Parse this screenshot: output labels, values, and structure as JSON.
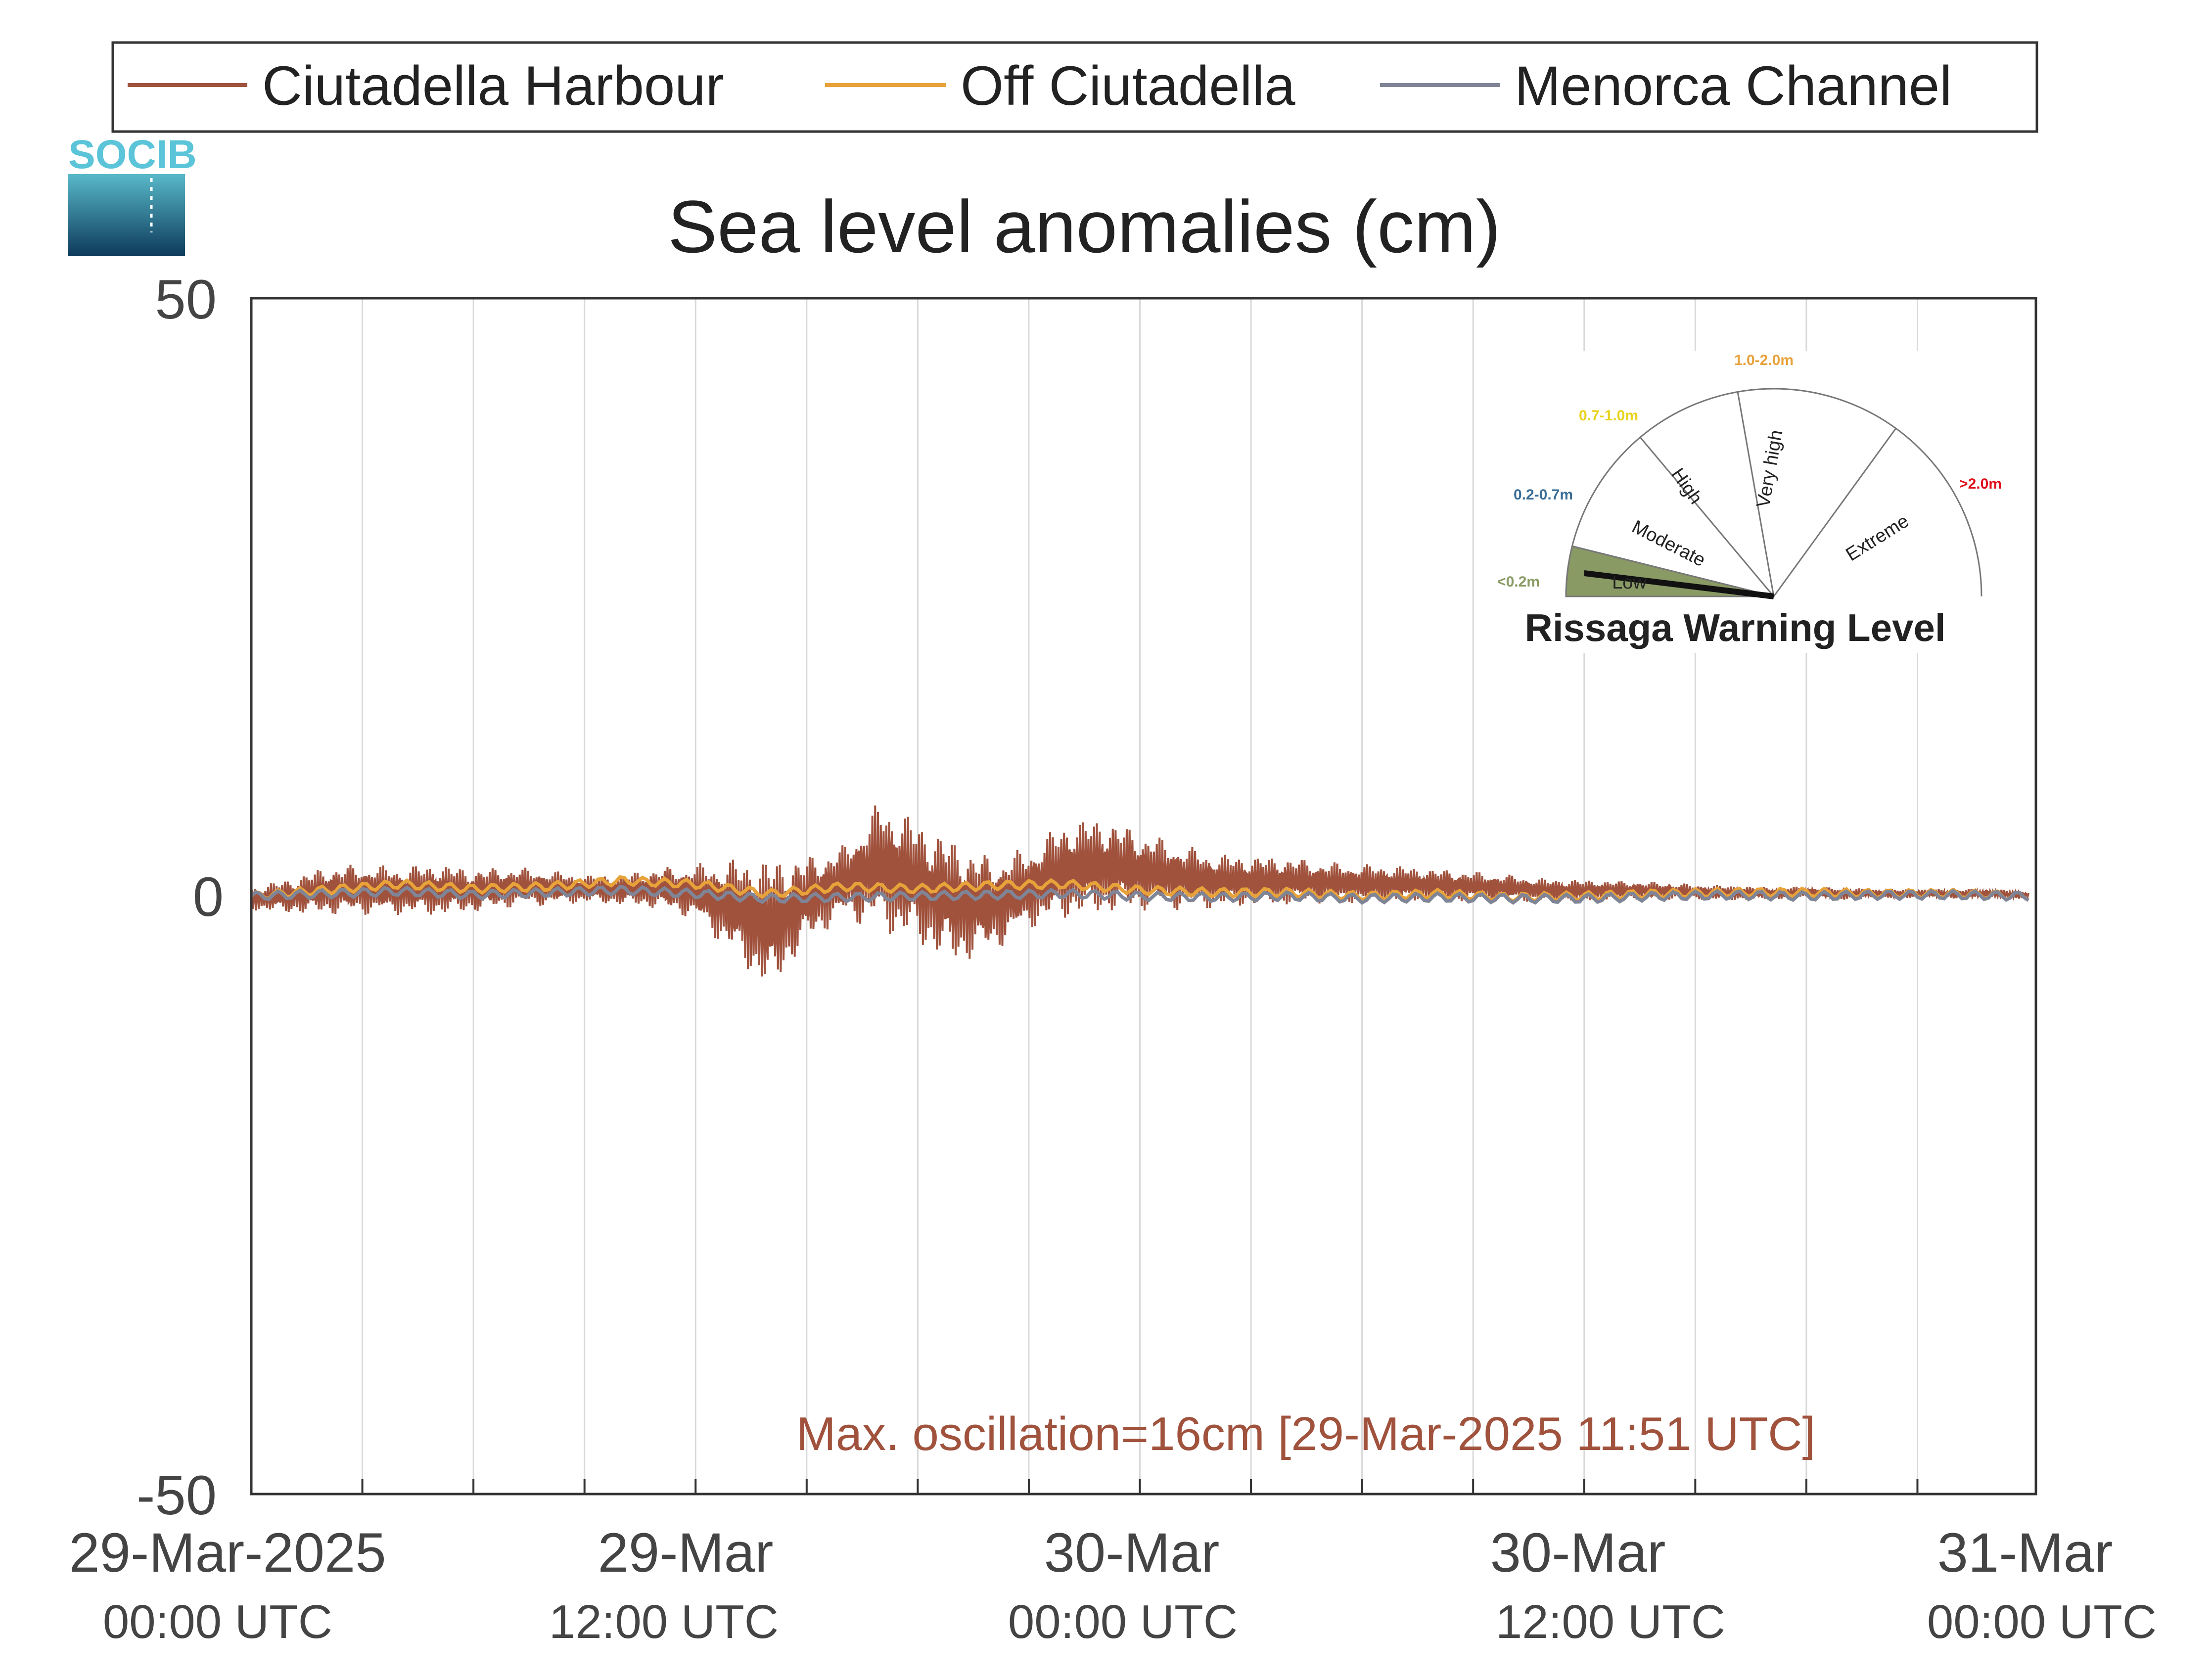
{
  "colors": {
    "ciutadella_harbour": "#A0523D",
    "off_ciutadella": "#E8A23A",
    "menorca_channel": "#7F8596",
    "low": "#8A9A64",
    "moderate_range": "#3C6E96",
    "high_range": "#E8D21E",
    "very_high_range": "#E8A23A",
    "extreme_range": "#E0101E",
    "logo_text": "#5BC4D8"
  },
  "logo": {
    "text": "SOCIB"
  },
  "chart_data": {
    "type": "line",
    "title": "Sea level anomalies (cm)",
    "ylim": [
      -50,
      50
    ],
    "yticks": [
      "50",
      "0",
      "-50"
    ],
    "xlim": [
      "2025-03-29 00:00",
      "2025-03-31 01:00"
    ],
    "x_unit": "hours since 29-Mar-2025 00:00 UTC",
    "xticks": [
      {
        "main": "29-Mar-2025",
        "sub": "00:00 UTC"
      },
      {
        "main": "29-Mar",
        "sub": "12:00 UTC"
      },
      {
        "main": "30-Mar",
        "sub": "00:00 UTC"
      },
      {
        "main": "30-Mar",
        "sub": "12:00 UTC"
      },
      {
        "main": "31-Mar",
        "sub": "00:00 UTC"
      }
    ],
    "grid": "vertical lines every 3 hours",
    "legend_position": "top",
    "annotation": "Max. oscillation=16cm [29-Mar-2025 11:51 UTC]",
    "series": [
      {
        "name": "Ciutadella Harbour",
        "description_of_values": "sea level anomaly envelope (cm), max/min per hour",
        "x": [
          0,
          1,
          2,
          3,
          4,
          5,
          6,
          7,
          8,
          9,
          10,
          11,
          12,
          13,
          14,
          15,
          16,
          17,
          18,
          19,
          20,
          21,
          22,
          23,
          24,
          25,
          26,
          27,
          28,
          29,
          30,
          31,
          32,
          33,
          34,
          35,
          36,
          37,
          38,
          39,
          40,
          41,
          42,
          43,
          44,
          45,
          46,
          47,
          48
        ],
        "max": [
          0.8,
          1.5,
          2.5,
          2.7,
          2.5,
          2.8,
          2.3,
          2.5,
          2.2,
          1.8,
          1.9,
          2.4,
          2.7,
          3.2,
          3.3,
          3.4,
          4.3,
          8.2,
          6.5,
          4.8,
          3.3,
          4.1,
          6.4,
          6.7,
          5.5,
          4.5,
          3.6,
          3.4,
          3.3,
          2.9,
          2.7,
          2.6,
          2.3,
          2.1,
          1.8,
          1.5,
          1.4,
          1.3,
          1.2,
          1.0,
          0.9,
          0.8,
          0.8,
          0.7,
          0.6,
          0.6,
          0.6,
          0.6,
          0.4
        ],
        "min": [
          -1.2,
          -1.5,
          -1.6,
          -1.6,
          -1.6,
          -1.7,
          -1.4,
          -1.0,
          -0.8,
          -0.6,
          -0.8,
          -1.1,
          -2.0,
          -5.0,
          -8.3,
          -4.0,
          -2.0,
          -3.0,
          -4.3,
          -5.9,
          -4.8,
          -2.8,
          -2.0,
          -1.6,
          -1.3,
          -1.2,
          -1.1,
          -0.9,
          -0.8,
          -0.6,
          -0.6,
          -0.6,
          -0.4,
          -0.5,
          -0.4,
          -0.6,
          -0.5,
          -0.3,
          -0.3,
          -0.3,
          -0.4,
          -0.3,
          -0.2,
          -0.3,
          -0.2,
          -0.2,
          -0.2,
          -0.2,
          -0.2
        ]
      },
      {
        "name": "Off Ciutadella",
        "description_of_values": "sea level anomaly (cm)",
        "x": [
          0,
          2,
          4,
          6,
          8,
          10,
          12,
          14,
          16,
          18,
          20,
          22,
          24,
          26,
          28,
          30,
          32,
          34,
          36,
          38,
          40,
          42,
          44,
          46,
          48
        ],
        "y": [
          0.0,
          0.5,
          1.0,
          0.6,
          0.8,
          1.3,
          1.0,
          0.2,
          0.8,
          0.6,
          0.9,
          1.0,
          0.5,
          0.3,
          0.3,
          0.0,
          0.2,
          -0.1,
          0.0,
          0.2,
          0.3,
          0.3,
          0.2,
          0.2,
          0.0
        ]
      },
      {
        "name": "Menorca Channel",
        "description_of_values": "sea level anomaly (cm)",
        "x": [
          0,
          2,
          4,
          6,
          8,
          10,
          12,
          14,
          16,
          18,
          20,
          22,
          24,
          26,
          28,
          30,
          32,
          34,
          36,
          38,
          40,
          42,
          44,
          46,
          48
        ],
        "y": [
          0.0,
          0.2,
          0.4,
          0.1,
          0.3,
          0.5,
          0.2,
          -0.2,
          -0.1,
          0.0,
          0.1,
          0.2,
          0.0,
          -0.1,
          0.0,
          -0.2,
          -0.1,
          -0.2,
          -0.2,
          0.0,
          0.1,
          0.0,
          0.1,
          0.1,
          0.0
        ]
      }
    ]
  },
  "gauge": {
    "title": "Rissaga Warning Level",
    "segments": [
      "Low",
      "Moderate",
      "High",
      "Very high",
      "Extreme"
    ],
    "ranges": [
      "<0.2m",
      "0.2-0.7m",
      "0.7-1.0m",
      "1.0-2.0m",
      ">2.0m"
    ],
    "current_level": "Low",
    "needle_fraction_of_low_segment": 0.5
  }
}
